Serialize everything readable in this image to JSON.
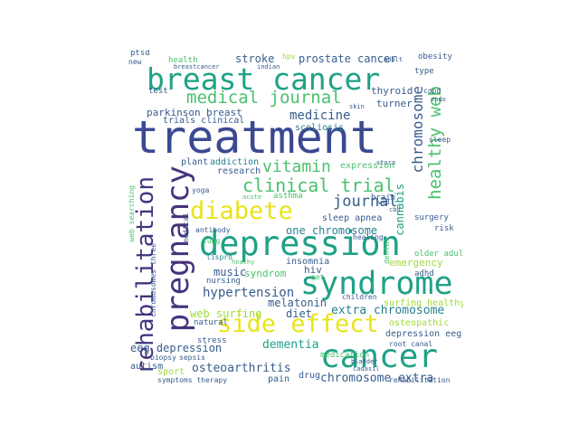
{
  "word_cloud": {
    "palette": {
      "navy": "#3b4992",
      "indigo": "#46337e",
      "blue": "#365c8d",
      "teal": "#277f8e",
      "green": "#1fa187",
      "lime": "#4ac16d",
      "yellowgreen": "#a0da39",
      "yellow": "#e8e419",
      "purple": "#440154"
    },
    "words": [
      {
        "text": "treatment",
        "color": "#3b4992"
      },
      {
        "text": "breast cancer",
        "color": "#1fa187"
      },
      {
        "text": "depression",
        "color": "#1fa187"
      },
      {
        "text": "syndrome",
        "color": "#1fa187"
      },
      {
        "text": "cancer",
        "color": "#1fa187"
      },
      {
        "text": "pregnancy",
        "color": "#46337e"
      },
      {
        "text": "rehabilitation",
        "color": "#46337e"
      },
      {
        "text": "diabete",
        "color": "#e8e419"
      },
      {
        "text": "side effect",
        "color": "#e8e419"
      },
      {
        "text": "clinical trial",
        "color": "#4ac16d"
      },
      {
        "text": "medical journal",
        "color": "#4ac16d"
      },
      {
        "text": "healthy web",
        "color": "#4ac16d"
      },
      {
        "text": "chromosome",
        "color": "#365c8d"
      },
      {
        "text": "vitamin",
        "color": "#4ac16d"
      },
      {
        "text": "journal",
        "color": "#365c8d"
      },
      {
        "text": "medicine",
        "color": "#365c8d"
      },
      {
        "text": "prostate cancer",
        "color": "#365c8d"
      },
      {
        "text": "one chromosome",
        "color": "#277f8e"
      },
      {
        "text": "hypertension",
        "color": "#365c8d"
      },
      {
        "text": "dementia",
        "color": "#1fa187"
      },
      {
        "text": "osteoarthritis",
        "color": "#365c8d"
      },
      {
        "text": "chromosome extra",
        "color": "#365c8d"
      },
      {
        "text": "extra chromosome",
        "color": "#277f8e"
      },
      {
        "text": "eeg depression",
        "color": "#365c8d"
      },
      {
        "text": "web surfing",
        "color": "#a0da39"
      },
      {
        "text": "diet",
        "color": "#365c8d"
      },
      {
        "text": "melatonin",
        "color": "#365c8d"
      },
      {
        "text": "music",
        "color": "#365c8d"
      },
      {
        "text": "stroke",
        "color": "#365c8d"
      },
      {
        "text": "parkinson",
        "color": "#365c8d"
      },
      {
        "text": "breast",
        "color": "#365c8d"
      },
      {
        "text": "scoliosis",
        "color": "#277f8e"
      },
      {
        "text": "trials clinical",
        "color": "#365c8d"
      },
      {
        "text": "thyroid",
        "color": "#365c8d"
      },
      {
        "text": "turner",
        "color": "#365c8d"
      },
      {
        "text": "cannabis",
        "color": "#1fa187"
      },
      {
        "text": "expression",
        "color": "#4ac16d"
      },
      {
        "text": "research",
        "color": "#365c8d"
      },
      {
        "text": "addiction",
        "color": "#277f8e"
      },
      {
        "text": "plant",
        "color": "#365c8d"
      },
      {
        "text": "emergency",
        "color": "#a0da39"
      },
      {
        "text": "depression eeg",
        "color": "#365c8d"
      },
      {
        "text": "osteopathic",
        "color": "#a0da39"
      },
      {
        "text": "surfing healthy",
        "color": "#a0da39"
      },
      {
        "text": "sleep apnea",
        "color": "#365c8d"
      },
      {
        "text": "insomnia",
        "color": "#365c8d"
      },
      {
        "text": "syndrom",
        "color": "#4ac16d"
      },
      {
        "text": "nursing",
        "color": "#365c8d"
      },
      {
        "text": "hiv",
        "color": "#365c8d"
      },
      {
        "text": "sport",
        "color": "#a0da39"
      },
      {
        "text": "autism",
        "color": "#365c8d"
      },
      {
        "text": "symptoms therapy",
        "color": "#365c8d"
      },
      {
        "text": "pain",
        "color": "#365c8d"
      },
      {
        "text": "drug",
        "color": "#365c8d"
      },
      {
        "text": "medication",
        "color": "#4ac16d"
      },
      {
        "text": "health",
        "color": "#4ac16d"
      },
      {
        "text": "test",
        "color": "#365c8d"
      },
      {
        "text": "obesity",
        "color": "#365c8d"
      },
      {
        "text": "type",
        "color": "#365c8d"
      },
      {
        "text": "hpv",
        "color": "#a0da39"
      },
      {
        "text": "copd",
        "color": "#365c8d"
      },
      {
        "text": "sleep",
        "color": "#365c8d"
      },
      {
        "text": "adhd",
        "color": "#365c8d"
      },
      {
        "text": "older adults",
        "color": "#4ac16d"
      },
      {
        "text": "surgery",
        "color": "#365c8d"
      },
      {
        "text": "risk",
        "color": "#365c8d"
      },
      {
        "text": "brain",
        "color": "#365c8d"
      },
      {
        "text": "stress",
        "color": "#365c8d"
      },
      {
        "text": "natural",
        "color": "#365c8d"
      },
      {
        "text": "ptsd",
        "color": "#365c8d"
      },
      {
        "text": "new",
        "color": "#365c8d"
      },
      {
        "text": "breastcancer",
        "color": "#365c8d"
      },
      {
        "text": "indian",
        "color": "#365c8d"
      },
      {
        "text": "lung",
        "color": "#4ac16d"
      },
      {
        "text": "yoga",
        "color": "#365c8d"
      },
      {
        "text": "antibody",
        "color": "#365c8d"
      },
      {
        "text": "asthma",
        "color": "#4ac16d"
      },
      {
        "text": "root canal",
        "color": "#365c8d"
      },
      {
        "text": "rehabilitation",
        "color": "#365c8d"
      },
      {
        "text": "chromosomes three",
        "color": "#365c8d"
      },
      {
        "text": "web searching",
        "color": "#4ac16d"
      },
      {
        "text": "medical",
        "color": "#365c8d"
      },
      {
        "text": "children",
        "color": "#365c8d"
      },
      {
        "text": "sepsis",
        "color": "#365c8d"
      },
      {
        "text": "biopsy",
        "color": "#365c8d"
      },
      {
        "text": "healing",
        "color": "#365c8d"
      },
      {
        "text": "dental",
        "color": "#4ac16d"
      },
      {
        "text": "skin",
        "color": "#365c8d"
      },
      {
        "text": "adult",
        "color": "#365c8d"
      },
      {
        "text": "endo",
        "color": "#365c8d"
      },
      {
        "text": "wed",
        "color": "#365c8d"
      },
      {
        "text": "cbd",
        "color": "#365c8d"
      },
      {
        "text": "pet",
        "color": "#4ac16d"
      },
      {
        "text": "lispro",
        "color": "#277f8e"
      },
      {
        "text": "heathy",
        "color": "#4ac16d"
      },
      {
        "text": "acute",
        "color": "#4ac16d"
      },
      {
        "text": "stora",
        "color": "#365c8d"
      },
      {
        "text": "cadasil",
        "color": "#365c8d"
      },
      {
        "text": "bladder",
        "color": "#365c8d"
      }
    ]
  }
}
